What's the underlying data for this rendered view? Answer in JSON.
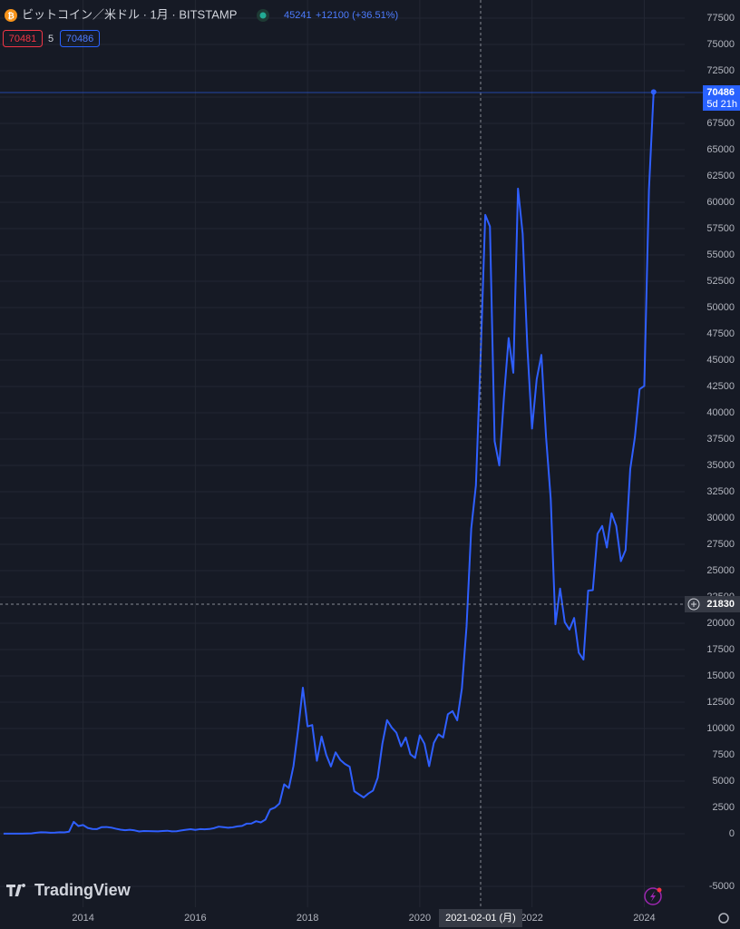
{
  "header": {
    "title": "ビットコイン／米ドル · 1月 · BITSTAMP",
    "price": "45241",
    "change": "+12100 (+36.51%)",
    "bid": "70481",
    "spread": "5",
    "ask": "70486",
    "last_price": "70486",
    "countdown": "5d 21h",
    "crosshair_price": "21830",
    "crosshair_date": "2021-02-01 (月)",
    "brand": "TradingView"
  },
  "chart_data": {
    "type": "line",
    "color": "#2f5fff",
    "grid": true,
    "xlim": [
      2012.52,
      2024.72
    ],
    "xticks": [
      2014,
      2016,
      2018,
      2020,
      2022,
      2024
    ],
    "ylim": [
      -6983,
      79224
    ],
    "yticks": [
      -5000,
      0,
      2500,
      5000,
      7500,
      10000,
      12500,
      15000,
      17500,
      20000,
      22500,
      25000,
      27500,
      30000,
      32500,
      35000,
      37500,
      40000,
      42500,
      45000,
      47500,
      50000,
      52500,
      55000,
      57500,
      60000,
      62500,
      65000,
      67500,
      70000,
      72500,
      75000,
      77500
    ],
    "x": [
      "2012-08",
      "2012-09",
      "2012-10",
      "2012-11",
      "2012-12",
      "2013-01",
      "2013-02",
      "2013-03",
      "2013-04",
      "2013-05",
      "2013-06",
      "2013-07",
      "2013-08",
      "2013-09",
      "2013-10",
      "2013-11",
      "2013-12",
      "2014-01",
      "2014-02",
      "2014-03",
      "2014-04",
      "2014-05",
      "2014-06",
      "2014-07",
      "2014-08",
      "2014-09",
      "2014-10",
      "2014-11",
      "2014-12",
      "2015-01",
      "2015-02",
      "2015-03",
      "2015-04",
      "2015-05",
      "2015-06",
      "2015-07",
      "2015-08",
      "2015-09",
      "2015-10",
      "2015-11",
      "2015-12",
      "2016-01",
      "2016-02",
      "2016-03",
      "2016-04",
      "2016-05",
      "2016-06",
      "2016-07",
      "2016-08",
      "2016-09",
      "2016-10",
      "2016-11",
      "2016-12",
      "2017-01",
      "2017-02",
      "2017-03",
      "2017-04",
      "2017-05",
      "2017-06",
      "2017-07",
      "2017-08",
      "2017-09",
      "2017-10",
      "2017-11",
      "2017-12",
      "2018-01",
      "2018-02",
      "2018-03",
      "2018-04",
      "2018-05",
      "2018-06",
      "2018-07",
      "2018-08",
      "2018-09",
      "2018-10",
      "2018-11",
      "2018-12",
      "2019-01",
      "2019-02",
      "2019-03",
      "2019-04",
      "2019-05",
      "2019-06",
      "2019-07",
      "2019-08",
      "2019-09",
      "2019-10",
      "2019-11",
      "2019-12",
      "2020-01",
      "2020-02",
      "2020-03",
      "2020-04",
      "2020-05",
      "2020-06",
      "2020-07",
      "2020-08",
      "2020-09",
      "2020-10",
      "2020-11",
      "2020-12",
      "2021-01",
      "2021-02",
      "2021-03",
      "2021-04",
      "2021-05",
      "2021-06",
      "2021-07",
      "2021-08",
      "2021-09",
      "2021-10",
      "2021-11",
      "2021-12",
      "2022-01",
      "2022-02",
      "2022-03",
      "2022-04",
      "2022-05",
      "2022-06",
      "2022-07",
      "2022-08",
      "2022-09",
      "2022-10",
      "2022-11",
      "2022-12",
      "2023-01",
      "2023-02",
      "2023-03",
      "2023-04",
      "2023-05",
      "2023-06",
      "2023-07",
      "2023-08",
      "2023-09",
      "2023-10",
      "2023-11",
      "2023-12",
      "2024-01",
      "2024-02",
      "2024-03"
    ],
    "values": [
      10,
      12,
      11,
      12.5,
      13.5,
      20,
      33,
      93,
      139,
      129,
      97,
      106,
      135,
      133,
      198,
      1129,
      732,
      830,
      550,
      450,
      445,
      630,
      640,
      585,
      480,
      390,
      338,
      375,
      320,
      218,
      254,
      244,
      236,
      230,
      263,
      285,
      230,
      236,
      314,
      377,
      430,
      368,
      437,
      416,
      448,
      530,
      673,
      624,
      575,
      608,
      700,
      742,
      963,
      970,
      1190,
      1080,
      1348,
      2300,
      2480,
      2875,
      4700,
      4340,
      6450,
      9950,
      13880,
      10200,
      10330,
      6930,
      9240,
      7500,
      6390,
      7730,
      7020,
      6630,
      6370,
      4040,
      3740,
      3450,
      3820,
      4100,
      5320,
      8550,
      10800,
      10090,
      9600,
      8300,
      9150,
      7550,
      7200,
      9350,
      8550,
      6420,
      8630,
      9450,
      9140,
      11350,
      11650,
      10780,
      13800,
      19700,
      28990,
      33100,
      45241,
      58800,
      57700,
      37300,
      35000,
      41500,
      47100,
      43800,
      61300,
      57000,
      46200,
      38500,
      43200,
      45500,
      37700,
      31800,
      19900,
      23300,
      20100,
      19400,
      20500,
      17200,
      16550,
      23100,
      23150,
      28500,
      29250,
      27200,
      30450,
      29250,
      25900,
      26950,
      34650,
      37700,
      42250,
      42550,
      61200,
      70486
    ]
  }
}
